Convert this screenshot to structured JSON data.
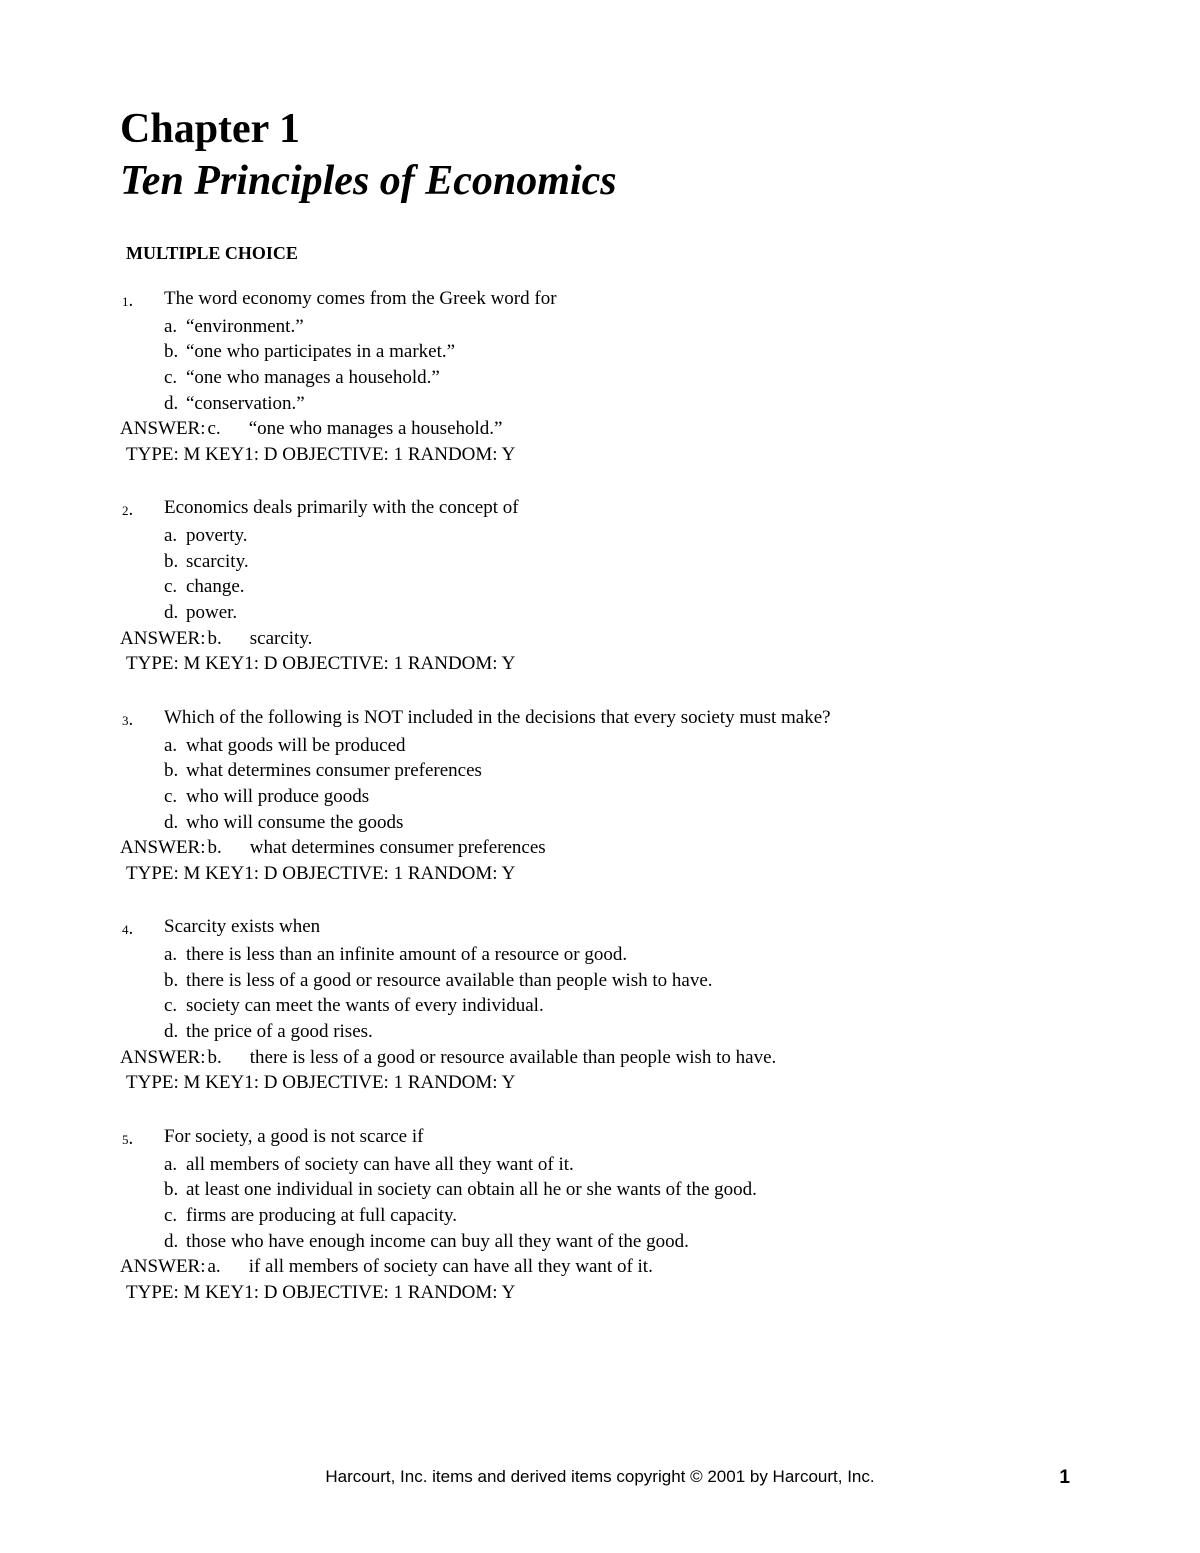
{
  "chapter_num": "Chapter 1",
  "chapter_title": "Ten Principles of Economics",
  "section_heading": "MULTIPLE CHOICE",
  "questions": [
    {
      "num": "1",
      "text": "The word economy comes from the Greek word for",
      "options": [
        {
          "l": "a.",
          "t": "“environment.”"
        },
        {
          "l": "b.",
          "t": "“one who participates in a market.”"
        },
        {
          "l": "c.",
          "t": "“one who manages a household.”"
        },
        {
          "l": "d.",
          "t": "“conservation.”"
        }
      ],
      "answer_label": "ANSWER:",
      "answer_letter": "c.",
      "answer_text": "“one who manages a household.”",
      "meta": "TYPE: M KEY1: D OBJECTIVE: 1 RANDOM: Y"
    },
    {
      "num": "2",
      "text": "Economics deals primarily with the concept of",
      "options": [
        {
          "l": "a.",
          "t": "poverty."
        },
        {
          "l": "b.",
          "t": "scarcity."
        },
        {
          "l": "c.",
          "t": "change."
        },
        {
          "l": "d.",
          "t": "power."
        }
      ],
      "answer_label": "ANSWER:",
      "answer_letter": "b.",
      "answer_text": "scarcity.",
      "meta": "TYPE: M KEY1: D OBJECTIVE: 1 RANDOM: Y"
    },
    {
      "num": "3",
      "text": "Which of the following is NOT included in the decisions that every society must make?",
      "options": [
        {
          "l": "a.",
          "t": "what goods will be produced"
        },
        {
          "l": "b.",
          "t": "what determines consumer preferences"
        },
        {
          "l": "c.",
          "t": "who will produce goods"
        },
        {
          "l": "d.",
          "t": "who will consume the goods"
        }
      ],
      "answer_label": "ANSWER:",
      "answer_letter": "b.",
      "answer_text": "what determines consumer preferences",
      "meta": "TYPE: M KEY1: D OBJECTIVE: 1 RANDOM: Y"
    },
    {
      "num": "4",
      "text": "Scarcity exists when",
      "options": [
        {
          "l": "a.",
          "t": "there is less than an infinite amount of a resource or good."
        },
        {
          "l": "b.",
          "t": "there is less of a good or resource available than people wish to have."
        },
        {
          "l": "c.",
          "t": "society can meet the wants of every individual."
        },
        {
          "l": "d.",
          "t": "the price of a good rises."
        }
      ],
      "answer_label": "ANSWER:",
      "answer_letter": "b.",
      "answer_text": "there is less of a good or resource available than people wish to have.",
      "meta": "TYPE: M KEY1: D OBJECTIVE: 1 RANDOM: Y"
    },
    {
      "num": "5",
      "text": "For society, a good is not scarce if",
      "options": [
        {
          "l": "a.",
          "t": "all members of society can have all they want of it."
        },
        {
          "l": "b.",
          "t": "at least one individual in society can obtain all he or she wants of the good."
        },
        {
          "l": "c.",
          "t": "firms are producing at full capacity."
        },
        {
          "l": "d.",
          "t": "those who have enough income can buy all they want of the good."
        }
      ],
      "answer_label": "ANSWER:",
      "answer_letter": "a.",
      "answer_text": "if all members of society can have all they want of it.",
      "meta": "TYPE: M  KEY1: D OBJECTIVE: 1 RANDOM: Y"
    }
  ],
  "footer": "Harcourt, Inc. items and derived items copyright © 2001 by Harcourt, Inc.",
  "page_num": "1"
}
